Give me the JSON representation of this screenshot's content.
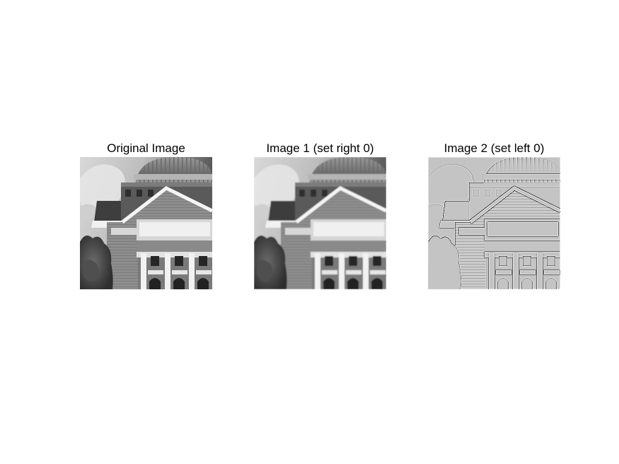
{
  "panels": [
    {
      "title": "Original Image",
      "variant": "original"
    },
    {
      "title": "Image 1 (set right 0)",
      "variant": "lowpass"
    },
    {
      "title": "Image 2 (set left 0)",
      "variant": "highpass"
    }
  ],
  "colors": {
    "background": "#ffffff",
    "title_text": "#000000"
  }
}
